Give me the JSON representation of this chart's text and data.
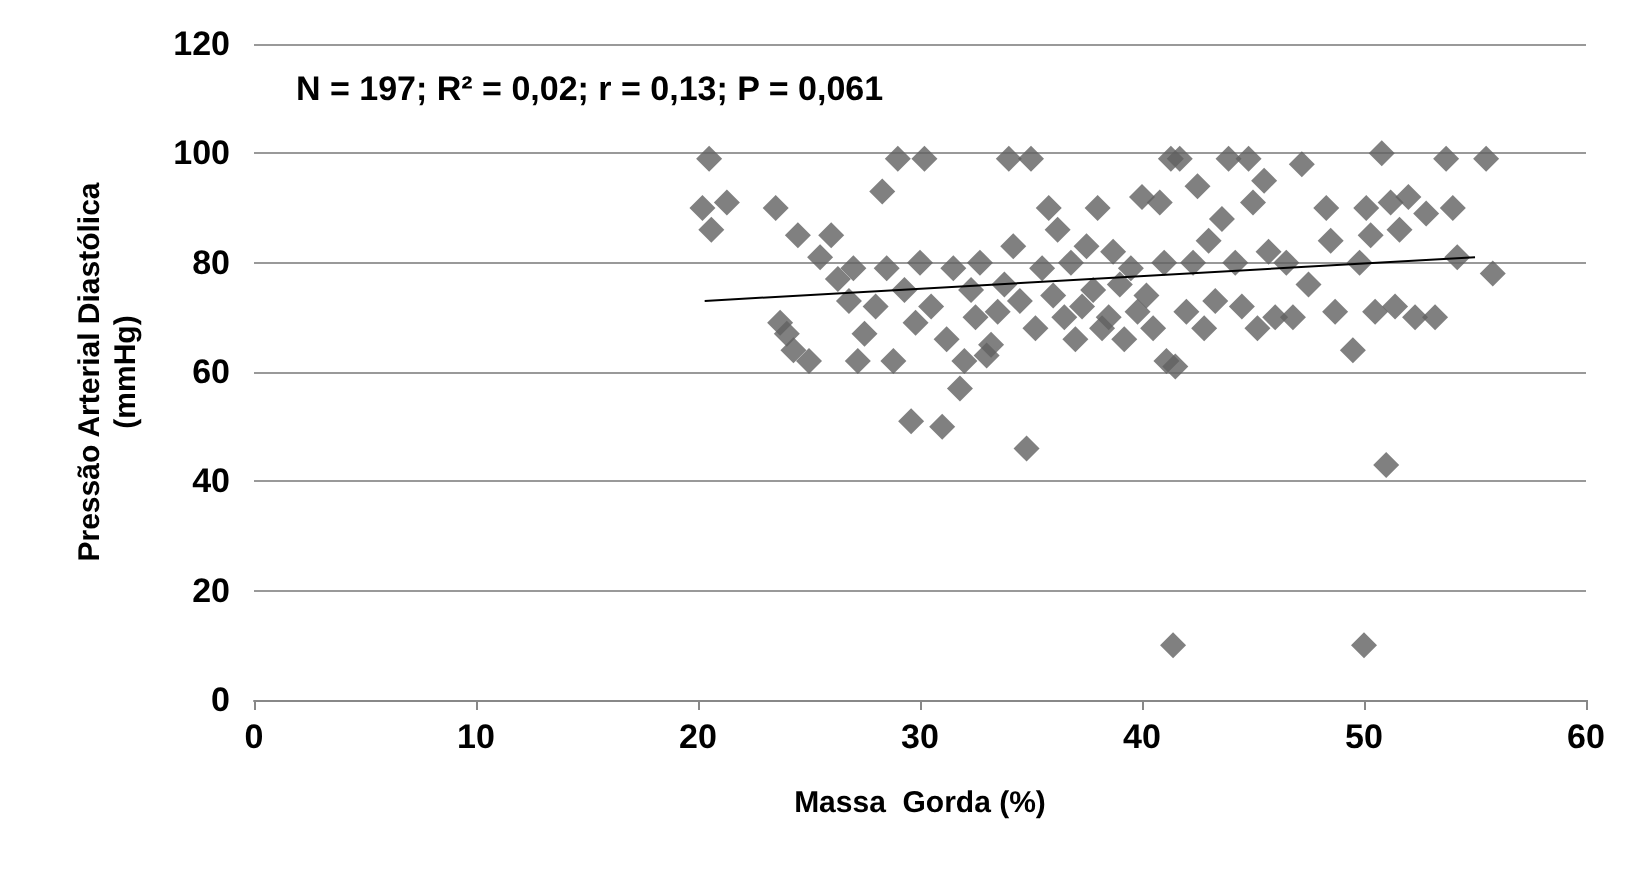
{
  "chart_data": {
    "type": "scatter",
    "xlabel": "Massa  Gorda (%)",
    "ylabel": "Pressão Arterial Diastólica\n(mmHg)",
    "annotations": [
      "N = 197; R² = 0,02; r = 0,13; P = 0,061"
    ],
    "xlim": [
      0,
      60
    ],
    "xticks": [
      0,
      10,
      20,
      30,
      40,
      50,
      60
    ],
    "ylim": [
      0,
      120
    ],
    "yticks": [
      0,
      20,
      40,
      60,
      80,
      100,
      120
    ],
    "grid": "y",
    "series": [
      {
        "marker": "diamond",
        "color": "#606060",
        "x": [
          20.2,
          20.5,
          20.6,
          21.3,
          23.5,
          23.7,
          24,
          24.3,
          24.5,
          25,
          25.5,
          26,
          26.3,
          26.8,
          27,
          27.2,
          27.5,
          28,
          28.3,
          28.5,
          28.8,
          29,
          29.3,
          29.6,
          29.8,
          30,
          30.2,
          30.5,
          31,
          31.2,
          31.5,
          31.8,
          32,
          32.3,
          32.5,
          32.7,
          33,
          33.2,
          33.5,
          33.8,
          34,
          34.2,
          34.5,
          34.8,
          35,
          35.2,
          35.5,
          35.8,
          36,
          36.2,
          36.5,
          36.8,
          37,
          37.3,
          37.5,
          37.8,
          38,
          38.2,
          38.5,
          38.7,
          39,
          39.2,
          39.5,
          39.8,
          40,
          40.2,
          40.5,
          40.8,
          41,
          41.1,
          41.3,
          41.4,
          41.5,
          41.7,
          42,
          42.3,
          42.5,
          42.8,
          43,
          43.3,
          43.6,
          43.9,
          44.2,
          44.5,
          44.8,
          45,
          45.2,
          45.5,
          45.7,
          46,
          46.5,
          46.8,
          47.2,
          47.5,
          48.3,
          48.5,
          48.7,
          49.5,
          49.8,
          50,
          50.1,
          50.3,
          50.5,
          50.8,
          51,
          51.2,
          51.4,
          51.6,
          52,
          52.3,
          52.8,
          53.2,
          53.7,
          54,
          54.2,
          55.5,
          55.8
        ],
        "values": [
          90,
          99,
          86,
          91,
          90,
          69,
          67,
          64,
          85,
          62,
          81,
          85,
          77,
          73,
          79,
          62,
          67,
          72,
          93,
          79,
          62,
          99,
          75,
          51,
          69,
          80,
          99,
          72,
          50,
          66,
          79,
          57,
          62,
          75,
          70,
          80,
          63,
          65,
          71,
          76,
          99,
          83,
          73,
          46,
          99,
          68,
          79,
          90,
          74,
          86,
          70,
          80,
          66,
          72,
          83,
          75,
          90,
          68,
          70,
          82,
          76,
          66,
          79,
          71,
          92,
          74,
          68,
          91,
          80,
          62,
          99,
          10,
          61,
          99,
          71,
          80,
          94,
          68,
          84,
          73,
          88,
          99,
          80,
          72,
          99,
          91,
          68,
          95,
          82,
          70,
          80,
          70,
          98,
          76,
          90,
          84,
          71,
          64,
          80,
          10,
          90,
          85,
          71,
          100,
          43,
          91,
          72,
          86,
          92,
          70,
          89,
          70,
          99,
          90,
          81,
          99,
          78
        ]
      },
      {
        "type": "line",
        "color": "#000000",
        "x": [
          20.3,
          55
        ],
        "values": [
          73,
          81
        ]
      }
    ]
  }
}
